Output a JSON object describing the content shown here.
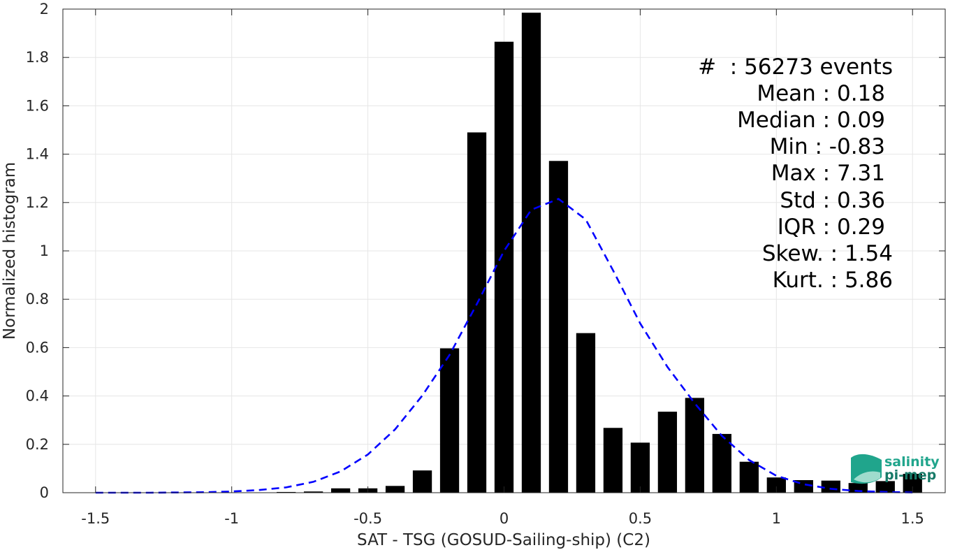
{
  "chart_data": {
    "type": "bar",
    "xlabel": "SAT - TSG (GOSUD-Sailing-ship) (C2)",
    "ylabel": "Normalized histogram",
    "xlim": [
      -1.62,
      1.62
    ],
    "ylim": [
      0,
      2
    ],
    "grid": true,
    "x_ticks": [
      -1.5,
      -1,
      -0.5,
      0,
      0.5,
      1,
      1.5
    ],
    "x_tick_labels": [
      "-1.5",
      "-1",
      "-0.5",
      "0",
      "0.5",
      "1",
      "1.5"
    ],
    "y_ticks": [
      0,
      0.2,
      0.4,
      0.6,
      0.8,
      1,
      1.2,
      1.4,
      1.6,
      1.8,
      2
    ],
    "y_tick_labels": [
      "0",
      "0.2",
      "0.4",
      "0.6",
      "0.8",
      "1",
      "1.2",
      "1.4",
      "1.6",
      "1.8",
      "2"
    ],
    "bar_width": 0.07,
    "series": [
      {
        "type": "bar",
        "color": "#000000",
        "x": [
          -0.8,
          -0.7,
          -0.6,
          -0.5,
          -0.4,
          -0.3,
          -0.2,
          -0.1,
          0.0,
          0.1,
          0.2,
          0.3,
          0.4,
          0.5,
          0.6,
          0.7,
          0.8,
          0.9,
          1.0,
          1.1,
          1.2,
          1.3,
          1.4,
          1.5
        ],
        "values": [
          0.003,
          0.005,
          0.018,
          0.018,
          0.028,
          0.092,
          0.597,
          1.49,
          1.865,
          1.985,
          1.372,
          0.66,
          0.268,
          0.207,
          0.335,
          0.392,
          0.243,
          0.128,
          0.063,
          0.052,
          0.05,
          0.04,
          0.048,
          0.078
        ]
      },
      {
        "type": "line",
        "style": "dashed",
        "color": "#0000ff",
        "x": [
          -1.5,
          -1.4,
          -1.3,
          -1.2,
          -1.1,
          -1.0,
          -0.9,
          -0.8,
          -0.7,
          -0.6,
          -0.5,
          -0.4,
          -0.3,
          -0.2,
          -0.1,
          0.0,
          0.1,
          0.2,
          0.3,
          0.4,
          0.5,
          0.6,
          0.7,
          0.8,
          0.9,
          1.0,
          1.1,
          1.2,
          1.3,
          1.4,
          1.5
        ],
        "values": [
          0.0,
          0.0,
          0.0,
          0.001,
          0.002,
          0.005,
          0.011,
          0.022,
          0.045,
          0.088,
          0.158,
          0.262,
          0.402,
          0.57,
          0.78,
          1.0,
          1.17,
          1.215,
          1.13,
          0.92,
          0.7,
          0.52,
          0.37,
          0.235,
          0.135,
          0.07,
          0.035,
          0.016,
          0.007,
          0.003,
          0.001
        ]
      }
    ],
    "annotations": [
      "#  : 56273 events",
      "Mean : 0.18",
      "Median : 0.09",
      "Min : -0.83",
      "Max : 7.31",
      "Std : 0.36",
      "IQR : 0.29",
      "Skew. : 1.54",
      "Kurt. : 5.86"
    ]
  },
  "logo": {
    "line1": "salinity",
    "line2": "pi-mep",
    "colors": [
      "#20a58c",
      "#177a68",
      "#9fdccd"
    ]
  },
  "colors": {
    "grid": "#e6e6e6",
    "axis": "#262626",
    "bars": "#000000",
    "fit": "#0000ff"
  }
}
